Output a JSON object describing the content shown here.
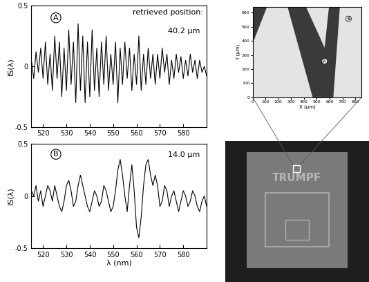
{
  "chart_data": [
    {
      "type": "line",
      "panel_label": "A",
      "annotations": [
        "retrieved position:",
        "40.2 μm"
      ],
      "y_label": "IS(λ)",
      "color": "#000000",
      "tick_labels": true,
      "x": [
        515,
        516,
        517,
        518,
        519,
        520,
        521,
        522,
        523,
        524,
        525,
        526,
        527,
        528,
        529,
        530,
        531,
        532,
        533,
        534,
        535,
        536,
        537,
        538,
        539,
        540,
        541,
        542,
        543,
        544,
        545,
        546,
        547,
        548,
        549,
        550,
        551,
        552,
        553,
        554,
        555,
        556,
        557,
        558,
        559,
        560,
        561,
        562,
        563,
        564,
        565,
        566,
        567,
        568,
        569,
        570,
        571,
        572,
        573,
        574,
        575,
        576,
        577,
        578,
        579,
        580,
        581,
        582,
        583,
        584,
        585,
        586,
        587,
        588,
        589,
        590
      ],
      "values": [
        0.05,
        -0.1,
        0.12,
        -0.05,
        0.15,
        -0.1,
        0.2,
        -0.15,
        0.1,
        -0.2,
        0.25,
        -0.1,
        0.2,
        -0.25,
        0.15,
        -0.2,
        0.3,
        -0.15,
        0.2,
        -0.3,
        0.35,
        -0.2,
        0.25,
        -0.3,
        0.2,
        -0.25,
        0.3,
        -0.2,
        0.15,
        -0.25,
        0.2,
        -0.15,
        0.25,
        -0.2,
        0.1,
        -0.15,
        0.2,
        -0.3,
        0.15,
        -0.15,
        0.2,
        -0.1,
        0.15,
        -0.2,
        0.1,
        -0.15,
        0.25,
        -0.2,
        0.1,
        -0.15,
        0.15,
        -0.1,
        0.1,
        -0.15,
        0.1,
        -0.1,
        0.15,
        -0.05,
        0.1,
        -0.15,
        0.05,
        -0.1,
        0.1,
        -0.05,
        0.08,
        -0.1,
        0.05,
        -0.08,
        0.1,
        -0.05,
        0.05,
        -0.1,
        0.05,
        -0.05,
        0.0,
        -0.08
      ],
      "xlim": [
        515,
        590
      ],
      "xticks": [
        520,
        530,
        540,
        550,
        560,
        570,
        580
      ],
      "ylim": [
        -0.5,
        0.5
      ],
      "yticks": [
        -0.5,
        0,
        0.5
      ]
    },
    {
      "type": "line",
      "panel_label": "B",
      "annotations": [
        "14.0 μm"
      ],
      "y_label": "IS(λ)",
      "x_label": "λ (nm)",
      "color": "#000000",
      "tick_labels": true,
      "x": [
        515,
        516,
        517,
        518,
        519,
        520,
        521,
        522,
        523,
        524,
        525,
        526,
        527,
        528,
        529,
        530,
        531,
        532,
        533,
        534,
        535,
        536,
        537,
        538,
        539,
        540,
        541,
        542,
        543,
        544,
        545,
        546,
        547,
        548,
        549,
        550,
        551,
        552,
        553,
        554,
        555,
        556,
        557,
        558,
        559,
        560,
        561,
        562,
        563,
        564,
        565,
        566,
        567,
        568,
        569,
        570,
        571,
        572,
        573,
        574,
        575,
        576,
        577,
        578,
        579,
        580,
        581,
        582,
        583,
        584,
        585,
        586,
        587,
        588,
        589,
        590
      ],
      "values": [
        0.05,
        0.0,
        0.1,
        -0.05,
        0.05,
        -0.1,
        0.0,
        0.1,
        0.05,
        -0.05,
        0.1,
        0.0,
        -0.1,
        -0.15,
        -0.05,
        0.1,
        0.15,
        0.05,
        -0.1,
        -0.05,
        0.1,
        0.2,
        0.1,
        0.0,
        -0.1,
        -0.15,
        -0.05,
        0.05,
        0.0,
        -0.1,
        -0.05,
        0.1,
        0.05,
        -0.05,
        -0.15,
        -0.1,
        0.05,
        0.25,
        0.35,
        0.2,
        0.0,
        -0.15,
        0.1,
        0.3,
        0.05,
        -0.3,
        -0.4,
        -0.2,
        0.1,
        0.3,
        0.35,
        0.2,
        0.1,
        0.2,
        0.1,
        -0.1,
        -0.05,
        0.1,
        0.05,
        -0.1,
        0.0,
        0.05,
        -0.05,
        -0.15,
        -0.05,
        0.05,
        0.0,
        -0.1,
        -0.05,
        0.05,
        0.0,
        -0.1,
        -0.15,
        -0.05,
        0.0,
        -0.1
      ],
      "xlim": [
        515,
        590
      ],
      "xticks": [
        520,
        530,
        540,
        550,
        560,
        570,
        580
      ],
      "ylim": [
        -0.5,
        0.5
      ],
      "yticks": [
        -0.5,
        0,
        0.5
      ]
    },
    {
      "type": "image",
      "x_label": "X (μm)",
      "y_label": "Y (μm)",
      "markers": [
        "A",
        "B"
      ],
      "xlim": [
        0,
        850
      ],
      "xticks": [
        0,
        100,
        200,
        300,
        400,
        500,
        600,
        700,
        800
      ],
      "ylim": [
        0,
        640
      ],
      "yticks": [
        0,
        100,
        200,
        300,
        400,
        500,
        600
      ]
    }
  ],
  "photo": {
    "label": "TRUMPF"
  }
}
